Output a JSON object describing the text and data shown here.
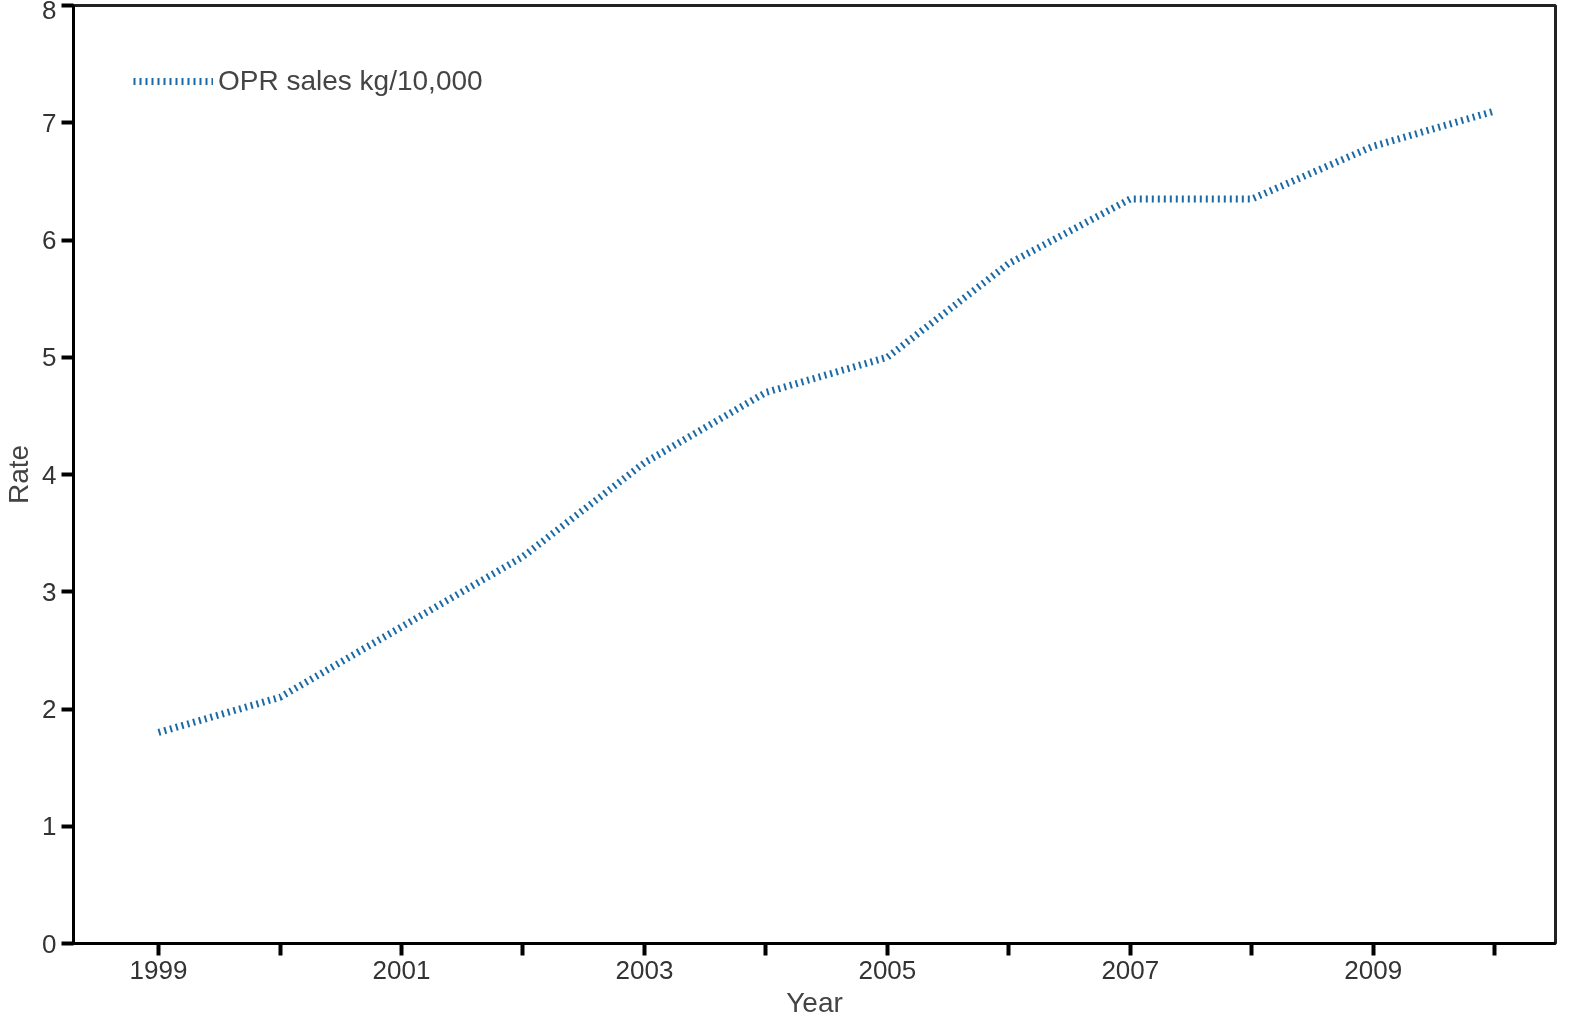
{
  "chart_data": {
    "type": "line",
    "xlabel": "Year",
    "ylabel": "Rate",
    "x": [
      1999,
      2000,
      2001,
      2002,
      2003,
      2004,
      2005,
      2006,
      2007,
      2008,
      2009,
      2010
    ],
    "series": [
      {
        "name": "OPR sales kg/10,000",
        "color": "#1a6aa6",
        "values": [
          1.8,
          2.1,
          2.7,
          3.3,
          4.1,
          4.7,
          5.0,
          5.8,
          6.35,
          6.35,
          6.8,
          7.1
        ]
      }
    ],
    "xlim": [
      1998.3,
      2010.5
    ],
    "xticks": [
      1999,
      {
        "value": 2000,
        "label": null
      },
      2001,
      {
        "value": 2002,
        "label": null
      },
      2003,
      {
        "value": 2004,
        "label": null
      },
      2005,
      {
        "value": 2006,
        "label": null
      },
      2007,
      {
        "value": 2008,
        "label": null
      },
      2009,
      {
        "value": 2010,
        "label": null
      }
    ],
    "ylim": [
      0,
      8
    ],
    "yticks": [
      0,
      1,
      2,
      3,
      4,
      5,
      6,
      7,
      8
    ],
    "grid": false,
    "legend": "top left",
    "marker": "none",
    "line_style": "dotted"
  }
}
